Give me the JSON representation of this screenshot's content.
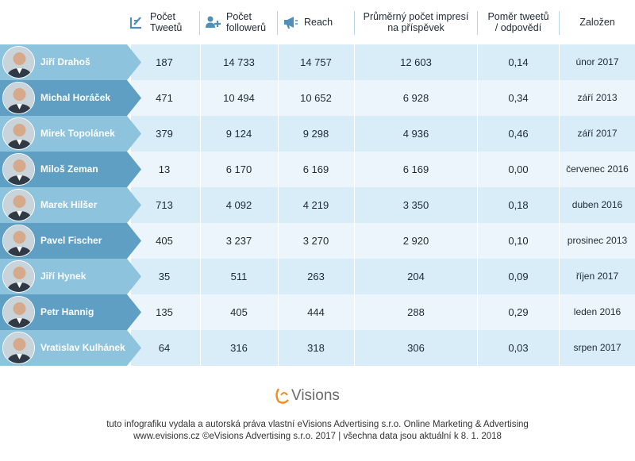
{
  "header": {
    "tweets_l1": "Počet",
    "tweets_l2": "Tweetů",
    "followers_l1": "Počet",
    "followers_l2": "followerů",
    "reach": "Reach",
    "impressions_l1": "Průměrný počet impresí",
    "impressions_l2": "na příspěvek",
    "ratio_l1": "Poměr tweetů",
    "ratio_l2": "/ odpovědí",
    "founded": "Založen"
  },
  "chart_data": {
    "type": "table",
    "columns": [
      "Počet Tweetů",
      "Počet followerů",
      "Reach",
      "Průměrný počet impresí na příspěvek",
      "Poměr tweetů / odpovědí",
      "Založen"
    ],
    "rows": [
      {
        "name": "Jiří Drahoš",
        "tweets": "187",
        "followers": "14 733",
        "reach": "14 757",
        "impressions": "12 603",
        "ratio": "0,14",
        "founded": "únor 2017",
        "tab_color": "#8dc3dd"
      },
      {
        "name": "Michal Horáček",
        "tweets": "471",
        "followers": "10 494",
        "reach": "10 652",
        "impressions": "6 928",
        "ratio": "0,34",
        "founded": "září 2013",
        "tab_color": "#5f9fc3"
      },
      {
        "name": "Mirek Topolánek",
        "tweets": "379",
        "followers": "9 124",
        "reach": "9 298",
        "impressions": "4 936",
        "ratio": "0,46",
        "founded": "září 2017",
        "tab_color": "#8dc3dd"
      },
      {
        "name": "Miloš Zeman",
        "tweets": "13",
        "followers": "6 170",
        "reach": "6 169",
        "impressions": "6 169",
        "ratio": "0,00",
        "founded": "červenec 2016",
        "tab_color": "#5f9fc3"
      },
      {
        "name": "Marek Hilšer",
        "tweets": "713",
        "followers": "4 092",
        "reach": "4 219",
        "impressions": "3 350",
        "ratio": "0,18",
        "founded": "duben 2016",
        "tab_color": "#8dc3dd"
      },
      {
        "name": "Pavel Fischer",
        "tweets": "405",
        "followers": "3 237",
        "reach": "3 270",
        "impressions": "2 920",
        "ratio": "0,10",
        "founded": "prosinec 2013",
        "tab_color": "#5f9fc3"
      },
      {
        "name": "Jiří Hynek",
        "tweets": "35",
        "followers": "511",
        "reach": "263",
        "impressions": "204",
        "ratio": "0,09",
        "founded": "říjen 2017",
        "tab_color": "#8dc3dd"
      },
      {
        "name": "Petr Hannig",
        "tweets": "135",
        "followers": "405",
        "reach": "444",
        "impressions": "288",
        "ratio": "0,29",
        "founded": "leden 2016",
        "tab_color": "#5f9fc3"
      },
      {
        "name": "Vratislav Kulhánek",
        "tweets": "64",
        "followers": "316",
        "reach": "318",
        "impressions": "306",
        "ratio": "0,03",
        "founded": "srpen 2017",
        "tab_color": "#8dc3dd"
      }
    ]
  },
  "logo": {
    "text": "eVisions",
    "accent": "#f28c1e"
  },
  "footer": {
    "line1": "tuto infografiku vydala a autorská práva vlastní eVisions Advertising s.r.o. Online Marketing & Advertising",
    "line2": "www.evisions.cz ©eVisions Advertising s.r.o. 2017 | všechna data jsou aktuální k 8. 1. 2018"
  },
  "colors": {
    "icon": "#4f8fb8",
    "row_odd": "#d9edf8",
    "row_even": "#ebf5fb"
  }
}
